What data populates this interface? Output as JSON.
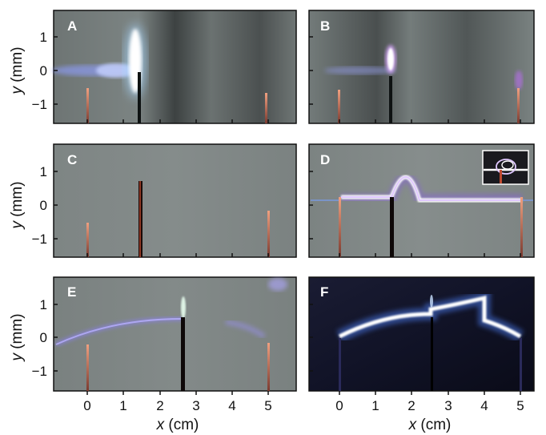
{
  "figure": {
    "y_axis_label_var": "y",
    "y_axis_label_unit": " (mm)",
    "x_axis_label_var": "x",
    "x_axis_label_unit": " (cm)",
    "y_tick_labels": [
      "1",
      "0",
      "−1"
    ],
    "x_tick_labels": [
      "0",
      "1",
      "2",
      "3",
      "4",
      "5"
    ]
  },
  "panels": [
    {
      "letter": "A"
    },
    {
      "letter": "B"
    },
    {
      "letter": "C"
    },
    {
      "letter": "D"
    },
    {
      "letter": "E"
    },
    {
      "letter": "F"
    }
  ]
}
